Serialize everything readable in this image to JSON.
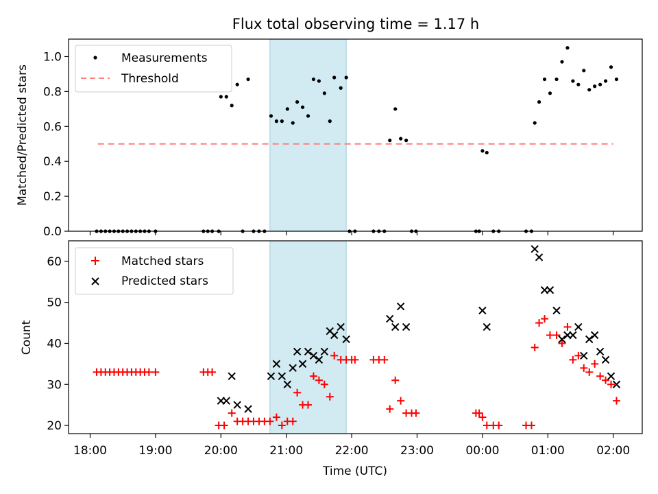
{
  "chart_data": {
    "title": "Flux total observing time = 1.17 h",
    "xlabel": "Time (UTC)",
    "x_tick_labels": [
      "18:00",
      "19:00",
      "20:00",
      "21:00",
      "22:00",
      "23:00",
      "00:00",
      "01:00",
      "02:00"
    ],
    "highlight_span": {
      "start": "20:45",
      "end": "21:55",
      "color": "#add8e6"
    },
    "panels": [
      {
        "type": "scatter",
        "ylabel": "Matched/Predicted stars",
        "ylim": [
          0,
          1.1
        ],
        "y_ticks": [
          "0.0",
          "0.2",
          "0.4",
          "0.6",
          "0.8",
          "1.0"
        ],
        "legend_position": "upper-left",
        "series": [
          {
            "name": "Measurements",
            "marker": "dot",
            "color": "#000000",
            "points": [
              [
                "18:06",
                0
              ],
              [
                "18:10",
                0
              ],
              [
                "18:14",
                0
              ],
              [
                "18:18",
                0
              ],
              [
                "18:22",
                0
              ],
              [
                "18:26",
                0
              ],
              [
                "18:30",
                0
              ],
              [
                "18:34",
                0
              ],
              [
                "18:38",
                0
              ],
              [
                "18:42",
                0
              ],
              [
                "18:46",
                0
              ],
              [
                "18:50",
                0
              ],
              [
                "18:54",
                0
              ],
              [
                "19:00",
                0
              ],
              [
                "19:44",
                0
              ],
              [
                "19:48",
                0
              ],
              [
                "19:52",
                0
              ],
              [
                "19:58",
                0
              ],
              [
                "20:00",
                0.77
              ],
              [
                "20:05",
                0.77
              ],
              [
                "20:10",
                0.72
              ],
              [
                "20:15",
                0.84
              ],
              [
                "20:20",
                0
              ],
              [
                "20:25",
                0.87
              ],
              [
                "20:30",
                0
              ],
              [
                "20:35",
                0
              ],
              [
                "20:40",
                0
              ],
              [
                "20:46",
                0.66
              ],
              [
                "20:51",
                0.63
              ],
              [
                "20:56",
                0.63
              ],
              [
                "21:01",
                0.7
              ],
              [
                "21:06",
                0.62
              ],
              [
                "21:10",
                0.74
              ],
              [
                "21:15",
                0.71
              ],
              [
                "21:20",
                0.66
              ],
              [
                "21:25",
                0.87
              ],
              [
                "21:30",
                0.86
              ],
              [
                "21:35",
                0.79
              ],
              [
                "21:40",
                0.63
              ],
              [
                "21:44",
                0.88
              ],
              [
                "21:50",
                0.82
              ],
              [
                "21:55",
                0.88
              ],
              [
                "21:58",
                0
              ],
              [
                "22:03",
                0
              ],
              [
                "22:20",
                0
              ],
              [
                "22:25",
                0
              ],
              [
                "22:30",
                0
              ],
              [
                "22:35",
                0.52
              ],
              [
                "22:40",
                0.7
              ],
              [
                "22:45",
                0.53
              ],
              [
                "22:50",
                0.52
              ],
              [
                "22:55",
                0
              ],
              [
                "22:59",
                0
              ],
              [
                "23:54",
                0
              ],
              [
                "23:57",
                0
              ],
              [
                "00:00",
                0.46
              ],
              [
                "00:04",
                0.45
              ],
              [
                "00:10",
                0
              ],
              [
                "00:15",
                0
              ],
              [
                "00:40",
                0
              ],
              [
                "00:45",
                0
              ],
              [
                "00:48",
                0.62
              ],
              [
                "00:52",
                0.74
              ],
              [
                "00:57",
                0.87
              ],
              [
                "01:02",
                0.79
              ],
              [
                "01:08",
                0.87
              ],
              [
                "01:13",
                0.97
              ],
              [
                "01:18",
                1.05
              ],
              [
                "01:23",
                0.86
              ],
              [
                "01:28",
                0.84
              ],
              [
                "01:33",
                0.92
              ],
              [
                "01:38",
                0.81
              ],
              [
                "01:43",
                0.83
              ],
              [
                "01:48",
                0.84
              ],
              [
                "01:53",
                0.86
              ],
              [
                "01:58",
                0.94
              ],
              [
                "02:03",
                0.87
              ]
            ]
          },
          {
            "name": "Threshold",
            "marker": "dashed-line",
            "color": "#ff7f7f",
            "points": [
              [
                "18:07",
                0.5
              ],
              [
                "02:00",
                0.5
              ]
            ]
          }
        ]
      },
      {
        "type": "scatter",
        "ylabel": "Count",
        "ylim": [
          18,
          65
        ],
        "y_ticks": [
          "20",
          "30",
          "40",
          "50",
          "60"
        ],
        "legend_position": "upper-left",
        "series": [
          {
            "name": "Matched stars",
            "marker": "plus",
            "color": "#ff0000",
            "points": [
              [
                "18:06",
                33
              ],
              [
                "18:10",
                33
              ],
              [
                "18:14",
                33
              ],
              [
                "18:18",
                33
              ],
              [
                "18:22",
                33
              ],
              [
                "18:26",
                33
              ],
              [
                "18:30",
                33
              ],
              [
                "18:34",
                33
              ],
              [
                "18:38",
                33
              ],
              [
                "18:42",
                33
              ],
              [
                "18:46",
                33
              ],
              [
                "18:50",
                33
              ],
              [
                "18:54",
                33
              ],
              [
                "19:00",
                33
              ],
              [
                "19:44",
                33
              ],
              [
                "19:48",
                33
              ],
              [
                "19:52",
                33
              ],
              [
                "19:58",
                20
              ],
              [
                "20:03",
                20
              ],
              [
                "20:10",
                23
              ],
              [
                "20:15",
                21
              ],
              [
                "20:20",
                21
              ],
              [
                "20:25",
                21
              ],
              [
                "20:30",
                21
              ],
              [
                "20:35",
                21
              ],
              [
                "20:40",
                21
              ],
              [
                "20:45",
                21
              ],
              [
                "20:51",
                22
              ],
              [
                "20:56",
                20
              ],
              [
                "21:01",
                21
              ],
              [
                "21:06",
                21
              ],
              [
                "21:10",
                28
              ],
              [
                "21:15",
                25
              ],
              [
                "21:20",
                25
              ],
              [
                "21:25",
                32
              ],
              [
                "21:30",
                31
              ],
              [
                "21:35",
                30
              ],
              [
                "21:40",
                27
              ],
              [
                "21:44",
                37
              ],
              [
                "21:50",
                36
              ],
              [
                "21:55",
                36
              ],
              [
                "22:00",
                36
              ],
              [
                "22:03",
                36
              ],
              [
                "22:20",
                36
              ],
              [
                "22:25",
                36
              ],
              [
                "22:30",
                36
              ],
              [
                "22:35",
                24
              ],
              [
                "22:40",
                31
              ],
              [
                "22:45",
                26
              ],
              [
                "22:50",
                23
              ],
              [
                "22:55",
                23
              ],
              [
                "22:59",
                23
              ],
              [
                "23:54",
                23
              ],
              [
                "23:57",
                23
              ],
              [
                "00:00",
                22
              ],
              [
                "00:04",
                20
              ],
              [
                "00:10",
                20
              ],
              [
                "00:15",
                20
              ],
              [
                "00:40",
                20
              ],
              [
                "00:45",
                20
              ],
              [
                "00:48",
                39
              ],
              [
                "00:52",
                45
              ],
              [
                "00:57",
                46
              ],
              [
                "01:02",
                42
              ],
              [
                "01:08",
                42
              ],
              [
                "01:13",
                40
              ],
              [
                "01:18",
                44
              ],
              [
                "01:23",
                36
              ],
              [
                "01:28",
                37
              ],
              [
                "01:33",
                34
              ],
              [
                "01:38",
                33
              ],
              [
                "01:43",
                35
              ],
              [
                "01:48",
                32
              ],
              [
                "01:53",
                31
              ],
              [
                "01:58",
                30
              ],
              [
                "02:03",
                26
              ]
            ]
          },
          {
            "name": "Predicted stars",
            "marker": "x",
            "color": "#000000",
            "points": [
              [
                "20:00",
                26
              ],
              [
                "20:05",
                26
              ],
              [
                "20:10",
                32
              ],
              [
                "20:15",
                25
              ],
              [
                "20:25",
                24
              ],
              [
                "20:46",
                32
              ],
              [
                "20:51",
                35
              ],
              [
                "20:56",
                32
              ],
              [
                "21:01",
                30
              ],
              [
                "21:06",
                34
              ],
              [
                "21:10",
                38
              ],
              [
                "21:15",
                35
              ],
              [
                "21:20",
                38
              ],
              [
                "21:25",
                37
              ],
              [
                "21:30",
                36
              ],
              [
                "21:35",
                38
              ],
              [
                "21:40",
                43
              ],
              [
                "21:44",
                42
              ],
              [
                "21:50",
                44
              ],
              [
                "21:55",
                41
              ],
              [
                "22:35",
                46
              ],
              [
                "22:40",
                44
              ],
              [
                "22:45",
                49
              ],
              [
                "22:50",
                44
              ],
              [
                "00:00",
                48
              ],
              [
                "00:04",
                44
              ],
              [
                "00:48",
                63
              ],
              [
                "00:52",
                61
              ],
              [
                "00:57",
                53
              ],
              [
                "01:02",
                53
              ],
              [
                "01:08",
                48
              ],
              [
                "01:13",
                41
              ],
              [
                "01:18",
                42
              ],
              [
                "01:23",
                42
              ],
              [
                "01:28",
                44
              ],
              [
                "01:33",
                37
              ],
              [
                "01:38",
                41
              ],
              [
                "01:43",
                42
              ],
              [
                "01:48",
                38
              ],
              [
                "01:53",
                36
              ],
              [
                "01:58",
                32
              ],
              [
                "02:03",
                30
              ]
            ]
          }
        ]
      }
    ]
  }
}
